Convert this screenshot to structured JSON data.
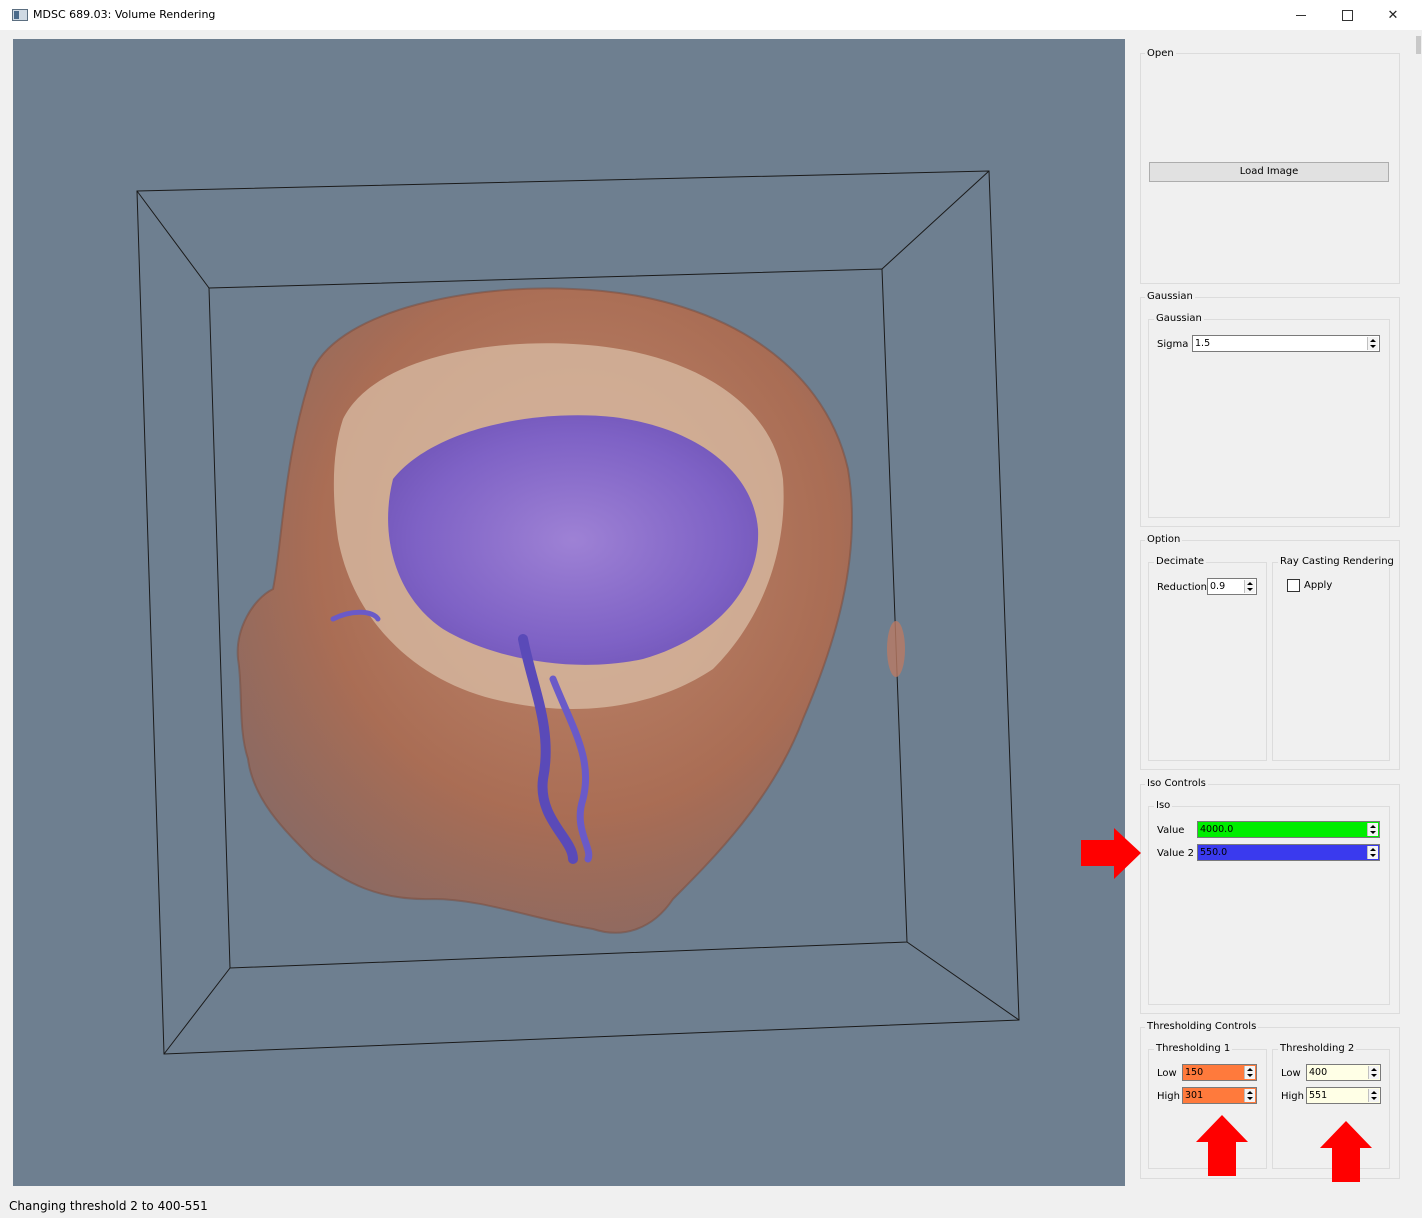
{
  "window": {
    "title": "MDSC 689.03: Volume Rendering",
    "controls": {
      "minimize": "—",
      "maximize": "□",
      "close": "✕"
    }
  },
  "viewport": {
    "background_color": "#6e7f90"
  },
  "panel": {
    "open": {
      "title": "Open",
      "load_button": "Load Image"
    },
    "gaussian": {
      "title": "Gaussian",
      "inner_title": "Gaussian",
      "sigma_label": "Sigma",
      "sigma_value": "1.5"
    },
    "option": {
      "title": "Option",
      "decimate_title": "Decimate",
      "reduction_label": "Reduction",
      "reduction_value": "0.9",
      "raycast_title": "Ray Casting Rendering",
      "apply_label": "Apply",
      "apply_checked": false
    },
    "iso": {
      "title": "Iso Controls",
      "inner_title": "Iso",
      "value_label": "Value",
      "value": "4000.0",
      "value_color": "#00ee00",
      "value2_label": "Value 2",
      "value2": "550.0",
      "value2_color": "#3a3aee"
    },
    "thresholding": {
      "title": "Thresholding Controls",
      "t1_title": "Thresholding 1",
      "t1_low_label": "Low",
      "t1_low": "150",
      "t1_high_label": "High",
      "t1_high": "301",
      "t1_color": "#ff7a3c",
      "t2_title": "Thresholding 2",
      "t2_low_label": "Low",
      "t2_low": "400",
      "t2_high_label": "High",
      "t2_high": "551",
      "t2_color": "#ffffe6"
    }
  },
  "annotations": {
    "arrow_color": "#ff0000"
  },
  "status": {
    "text": "Changing threshold 2 to 400-551"
  }
}
